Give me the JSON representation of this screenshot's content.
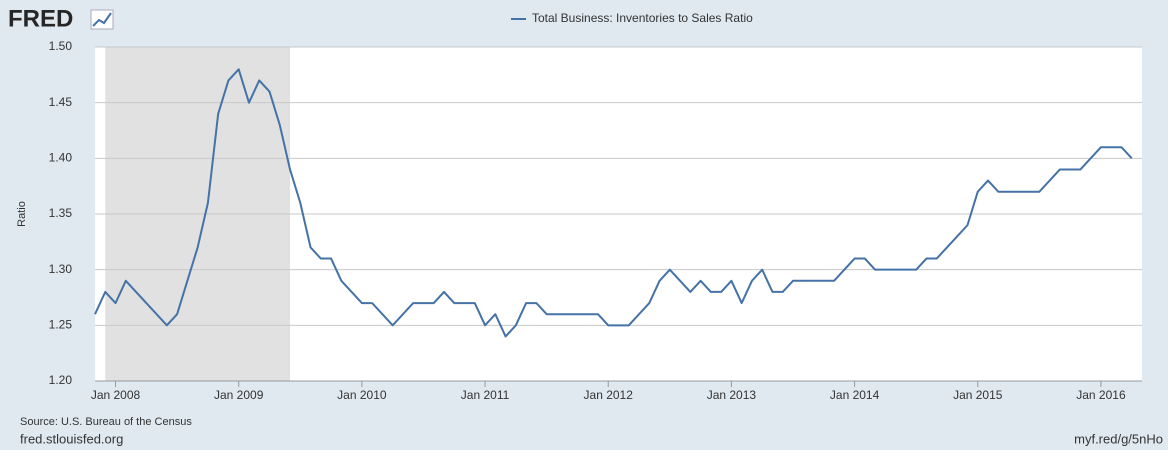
{
  "logo": "FRED",
  "chart_data": {
    "type": "line",
    "series": [
      {
        "name": "Total Business: Inventories to Sales Ratio",
        "color": "#4572a7",
        "values": [
          1.26,
          1.28,
          1.27,
          1.29,
          1.28,
          1.27,
          1.26,
          1.25,
          1.26,
          1.29,
          1.32,
          1.36,
          1.44,
          1.47,
          1.48,
          1.45,
          1.47,
          1.46,
          1.43,
          1.39,
          1.36,
          1.32,
          1.31,
          1.31,
          1.29,
          1.28,
          1.27,
          1.27,
          1.26,
          1.25,
          1.26,
          1.27,
          1.27,
          1.27,
          1.28,
          1.27,
          1.27,
          1.27,
          1.25,
          1.26,
          1.24,
          1.25,
          1.27,
          1.27,
          1.26,
          1.26,
          1.26,
          1.26,
          1.26,
          1.26,
          1.25,
          1.25,
          1.25,
          1.26,
          1.27,
          1.29,
          1.3,
          1.29,
          1.28,
          1.29,
          1.28,
          1.28,
          1.29,
          1.27,
          1.29,
          1.3,
          1.28,
          1.28,
          1.29,
          1.29,
          1.29,
          1.29,
          1.29,
          1.3,
          1.31,
          1.31,
          1.3,
          1.3,
          1.3,
          1.3,
          1.3,
          1.31,
          1.31,
          1.32,
          1.33,
          1.34,
          1.37,
          1.38,
          1.37,
          1.37,
          1.37,
          1.37,
          1.37,
          1.38,
          1.39,
          1.39,
          1.39,
          1.4,
          1.41,
          1.41,
          1.41,
          1.4
        ]
      }
    ],
    "x": [
      "2007-11",
      "2007-12",
      "2008-01",
      "2008-02",
      "2008-03",
      "2008-04",
      "2008-05",
      "2008-06",
      "2008-07",
      "2008-08",
      "2008-09",
      "2008-10",
      "2008-11",
      "2008-12",
      "2009-01",
      "2009-02",
      "2009-03",
      "2009-04",
      "2009-05",
      "2009-06",
      "2009-07",
      "2009-08",
      "2009-09",
      "2009-10",
      "2009-11",
      "2009-12",
      "2010-01",
      "2010-02",
      "2010-03",
      "2010-04",
      "2010-05",
      "2010-06",
      "2010-07",
      "2010-08",
      "2010-09",
      "2010-10",
      "2010-11",
      "2010-12",
      "2011-01",
      "2011-02",
      "2011-03",
      "2011-04",
      "2011-05",
      "2011-06",
      "2011-07",
      "2011-08",
      "2011-09",
      "2011-10",
      "2011-11",
      "2011-12",
      "2012-01",
      "2012-02",
      "2012-03",
      "2012-04",
      "2012-05",
      "2012-06",
      "2012-07",
      "2012-08",
      "2012-09",
      "2012-10",
      "2012-11",
      "2012-12",
      "2013-01",
      "2013-02",
      "2013-03",
      "2013-04",
      "2013-05",
      "2013-06",
      "2013-07",
      "2013-08",
      "2013-09",
      "2013-10",
      "2013-11",
      "2013-12",
      "2014-01",
      "2014-02",
      "2014-03",
      "2014-04",
      "2014-05",
      "2014-06",
      "2014-07",
      "2014-08",
      "2014-09",
      "2014-10",
      "2014-11",
      "2014-12",
      "2015-01",
      "2015-02",
      "2015-03",
      "2015-04",
      "2015-05",
      "2015-06",
      "2015-07",
      "2015-08",
      "2015-09",
      "2015-10",
      "2015-11",
      "2015-12",
      "2016-01",
      "2016-02",
      "2016-03",
      "2016-04"
    ],
    "xlim": [
      "2007-11",
      "2016-05"
    ],
    "xticks": [
      {
        "value": "2008-01",
        "label": "Jan 2008"
      },
      {
        "value": "2009-01",
        "label": "Jan 2009"
      },
      {
        "value": "2010-01",
        "label": "Jan 2010"
      },
      {
        "value": "2011-01",
        "label": "Jan 2011"
      },
      {
        "value": "2012-01",
        "label": "Jan 2012"
      },
      {
        "value": "2013-01",
        "label": "Jan 2013"
      },
      {
        "value": "2014-01",
        "label": "Jan 2014"
      },
      {
        "value": "2015-01",
        "label": "Jan 2015"
      },
      {
        "value": "2016-01",
        "label": "Jan 2016"
      }
    ],
    "ylim": [
      1.2,
      1.5
    ],
    "yticks": [
      {
        "value": 1.2,
        "label": "1.20"
      },
      1.25,
      {
        "value": 1.3,
        "label": "1.30"
      },
      1.35,
      {
        "value": 1.4,
        "label": "1.40"
      },
      1.45,
      {
        "value": 1.5,
        "label": "1.50"
      }
    ],
    "ylabel": "Ratio",
    "grid": true,
    "recessions": [
      [
        "2007-12",
        "2009-06"
      ]
    ],
    "recession_color": "#e1e1e1",
    "source": "Source: U.S. Bureau of the Census",
    "site": "fred.stlouisfed.org",
    "short_link": "myf.red/g/5nHo"
  }
}
